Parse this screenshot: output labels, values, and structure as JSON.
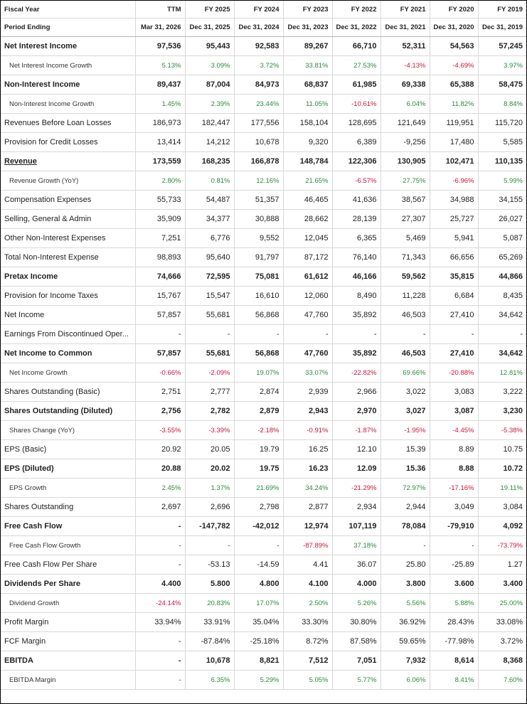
{
  "header": {
    "row1_label": "Fiscal Year",
    "row2_label": "Period Ending",
    "columns": [
      "TTM",
      "FY 2025",
      "FY 2024",
      "FY 2023",
      "FY 2022",
      "FY 2021",
      "FY 2020",
      "FY 2019"
    ],
    "periods": [
      "Mar 31, 2026",
      "Dec 31, 2025",
      "Dec 31, 2024",
      "Dec 31, 2023",
      "Dec 31, 2022",
      "Dec 31, 2021",
      "Dec 31, 2020",
      "Dec 31, 2019"
    ]
  },
  "colors": {
    "positive": "#2b8a3e",
    "negative": "#d0143a",
    "border": "#d8d8d8"
  },
  "rows": [
    {
      "label": "Net Interest Income",
      "style": "bold",
      "sep": true,
      "values": [
        "97,536",
        "95,443",
        "92,583",
        "89,267",
        "66,710",
        "52,311",
        "54,563",
        "57,245"
      ]
    },
    {
      "label": "Net Interest Income Growth",
      "style": "sub",
      "values": [
        "5.13%",
        "3.09%",
        "3.72%",
        "33.81%",
        "27.53%",
        "-4.13%",
        "-4.69%",
        "3.97%"
      ]
    },
    {
      "label": "Non-Interest Income",
      "style": "bold",
      "values": [
        "89,437",
        "87,004",
        "84,973",
        "68,837",
        "61,985",
        "69,338",
        "65,388",
        "58,475"
      ]
    },
    {
      "label": "Non-Interest Income Growth",
      "style": "sub",
      "values": [
        "1.45%",
        "2.39%",
        "23.44%",
        "11.05%",
        "-10.61%",
        "6.04%",
        "11.82%",
        "8.84%"
      ]
    },
    {
      "label": "Revenues Before Loan Losses",
      "style": "normal",
      "sep": true,
      "values": [
        "186,973",
        "182,447",
        "177,556",
        "158,104",
        "128,695",
        "121,649",
        "119,951",
        "115,720"
      ]
    },
    {
      "label": "Provision for Credit Losses",
      "style": "normal",
      "values": [
        "13,414",
        "14,212",
        "10,678",
        "9,320",
        "6,389",
        "-9,256",
        "17,480",
        "5,585"
      ]
    },
    {
      "label": "Revenue",
      "style": "bold",
      "underline": true,
      "values": [
        "173,559",
        "168,235",
        "166,878",
        "148,784",
        "122,306",
        "130,905",
        "102,471",
        "110,135"
      ]
    },
    {
      "label": "Revenue Growth (YoY)",
      "style": "sub",
      "values": [
        "2.80%",
        "0.81%",
        "12.16%",
        "21.65%",
        "-6.57%",
        "27.75%",
        "-6.96%",
        "5.99%"
      ]
    },
    {
      "label": "Compensation Expenses",
      "style": "normal",
      "values": [
        "55,733",
        "54,487",
        "51,357",
        "46,465",
        "41,636",
        "38,567",
        "34,988",
        "34,155"
      ]
    },
    {
      "label": "Selling, General & Admin",
      "style": "normal",
      "values": [
        "35,909",
        "34,377",
        "30,888",
        "28,662",
        "28,139",
        "27,307",
        "25,727",
        "26,027"
      ]
    },
    {
      "label": "Other Non-Interest Expenses",
      "style": "normal",
      "values": [
        "7,251",
        "6,776",
        "9,552",
        "12,045",
        "6,365",
        "5,469",
        "5,941",
        "5,087"
      ]
    },
    {
      "label": "Total Non-Interest Expense",
      "style": "normal",
      "values": [
        "98,893",
        "95,640",
        "91,797",
        "87,172",
        "76,140",
        "71,343",
        "66,656",
        "65,269"
      ]
    },
    {
      "label": "Pretax Income",
      "style": "bold",
      "values": [
        "74,666",
        "72,595",
        "75,081",
        "61,612",
        "46,166",
        "59,562",
        "35,815",
        "44,866"
      ]
    },
    {
      "label": "Provision for Income Taxes",
      "style": "normal",
      "sep": true,
      "values": [
        "15,767",
        "15,547",
        "16,610",
        "12,060",
        "8,490",
        "11,228",
        "6,684",
        "8,435"
      ]
    },
    {
      "label": "Net Income",
      "style": "normal",
      "values": [
        "57,857",
        "55,681",
        "56,868",
        "47,760",
        "35,892",
        "46,503",
        "27,410",
        "34,642"
      ]
    },
    {
      "label": "Earnings From Discontinued Oper...",
      "style": "normal",
      "values": [
        "-",
        "-",
        "-",
        "-",
        "-",
        "-",
        "-",
        "-"
      ]
    },
    {
      "label": "Net Income to Common",
      "style": "bold",
      "values": [
        "57,857",
        "55,681",
        "56,868",
        "47,760",
        "35,892",
        "46,503",
        "27,410",
        "34,642"
      ]
    },
    {
      "label": "Net Income Growth",
      "style": "sub",
      "values": [
        "-0.66%",
        "-2.09%",
        "19.07%",
        "33.07%",
        "-22.82%",
        "69.66%",
        "-20.88%",
        "12.81%"
      ]
    },
    {
      "label": "Shares Outstanding (Basic)",
      "style": "normal",
      "values": [
        "2,751",
        "2,777",
        "2,874",
        "2,939",
        "2,966",
        "3,022",
        "3,083",
        "3,222"
      ]
    },
    {
      "label": "Shares Outstanding (Diluted)",
      "style": "bold",
      "values": [
        "2,756",
        "2,782",
        "2,879",
        "2,943",
        "2,970",
        "3,027",
        "3,087",
        "3,230"
      ]
    },
    {
      "label": "Shares Change (YoY)",
      "style": "sub",
      "values": [
        "-3.55%",
        "-3.39%",
        "-2.18%",
        "-0.91%",
        "-1.87%",
        "-1.95%",
        "-4.45%",
        "-5.38%"
      ]
    },
    {
      "label": "EPS (Basic)",
      "style": "normal",
      "sep": true,
      "values": [
        "20.92",
        "20.05",
        "19.79",
        "16.25",
        "12.10",
        "15.39",
        "8.89",
        "10.75"
      ]
    },
    {
      "label": "EPS (Diluted)",
      "style": "bold",
      "values": [
        "20.88",
        "20.02",
        "19.75",
        "16.23",
        "12.09",
        "15.36",
        "8.88",
        "10.72"
      ]
    },
    {
      "label": "EPS Growth",
      "style": "sub",
      "values": [
        "2.45%",
        "1.37%",
        "21.69%",
        "34.24%",
        "-21.29%",
        "72.97%",
        "-17.16%",
        "19.11%"
      ]
    },
    {
      "label": "Shares Outstanding",
      "style": "normal",
      "values": [
        "2,697",
        "2,696",
        "2,798",
        "2,877",
        "2,934",
        "2,944",
        "3,049",
        "3,084"
      ]
    },
    {
      "label": "Free Cash Flow",
      "style": "bold",
      "values": [
        "-",
        "-147,782",
        "-42,012",
        "12,974",
        "107,119",
        "78,084",
        "-79,910",
        "4,092"
      ]
    },
    {
      "label": "Free Cash Flow Growth",
      "style": "sub",
      "values": [
        "-",
        "-",
        "-",
        "-87.89%",
        "37.18%",
        "-",
        "-",
        "-73.79%"
      ]
    },
    {
      "label": "Free Cash Flow Per Share",
      "style": "normal",
      "values": [
        "-",
        "-53.13",
        "-14.59",
        "4.41",
        "36.07",
        "25.80",
        "-25.89",
        "1.27"
      ]
    },
    {
      "label": "Dividends Per Share",
      "style": "bold",
      "sep": true,
      "values": [
        "4.400",
        "5.800",
        "4.800",
        "4.100",
        "4.000",
        "3.800",
        "3.600",
        "3.400"
      ]
    },
    {
      "label": "Dividend Growth",
      "style": "sub",
      "values": [
        "-24.14%",
        "20.83%",
        "17.07%",
        "2.50%",
        "5.26%",
        "5.56%",
        "5.88%",
        "25.00%"
      ]
    },
    {
      "label": "Profit Margin",
      "style": "normal",
      "values": [
        "33.94%",
        "33.91%",
        "35.04%",
        "33.30%",
        "30.80%",
        "36.92%",
        "28.43%",
        "33.08%"
      ]
    },
    {
      "label": "FCF Margin",
      "style": "normal",
      "values": [
        "-",
        "-87.84%",
        "-25.18%",
        "8.72%",
        "87.58%",
        "59.65%",
        "-77.98%",
        "3.72%"
      ]
    },
    {
      "label": "EBITDA",
      "style": "bold",
      "sep": true,
      "values": [
        "-",
        "10,678",
        "8,821",
        "7,512",
        "7,051",
        "7,932",
        "8,614",
        "8,368"
      ]
    },
    {
      "label": "EBITDA Margin",
      "style": "sub",
      "values": [
        "-",
        "6.35%",
        "5.29%",
        "5.05%",
        "5.77%",
        "6.06%",
        "8.41%",
        "7.60%"
      ]
    }
  ]
}
